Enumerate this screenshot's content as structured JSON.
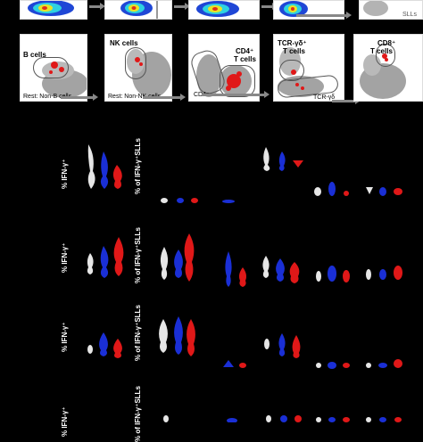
{
  "top_row": {
    "partial_label": "SLLs"
  },
  "gating_row": {
    "panels": [
      {
        "label_lines": [
          "B cells"
        ],
        "bottom_label": "Rest: Non-B cells"
      },
      {
        "label_lines": [
          "NK cells"
        ],
        "bottom_label": "Rest: Non-NK cells"
      },
      {
        "label_lines": [
          "CD4⁺",
          "T cells"
        ],
        "bottom_label": "CD4⁻"
      },
      {
        "label_lines": [
          "TCR-γδ⁺",
          "T cells"
        ],
        "bottom_label": "TCR-γδ"
      },
      {
        "label_lines": [
          "CD8⁺",
          "T cells"
        ],
        "bottom_label": ""
      }
    ]
  },
  "violin_rows": [
    {
      "left_ylabel": "% IFN-γ⁺",
      "right_ylabel": "% of IFN-γ⁺SLLs"
    },
    {
      "left_ylabel": "% IFN-γ⁺",
      "right_ylabel": "% of IFN-γ⁺SLLs"
    },
    {
      "left_ylabel": "% IFN-γ⁺",
      "right_ylabel": "% of IFN-γ⁺SLLs"
    },
    {
      "left_ylabel": "% IFN-γ⁺",
      "right_ylabel": "% of IFN-γ⁺SLLs"
    }
  ],
  "colors": {
    "background": "#000000",
    "panel": "#ffffff",
    "population_gray": "#9a9a9a",
    "highlight_red": "#e01818",
    "group_white": "#e6e6e6",
    "group_blue": "#1a2fd6",
    "group_red": "#e01818",
    "arrow": "#888888"
  }
}
